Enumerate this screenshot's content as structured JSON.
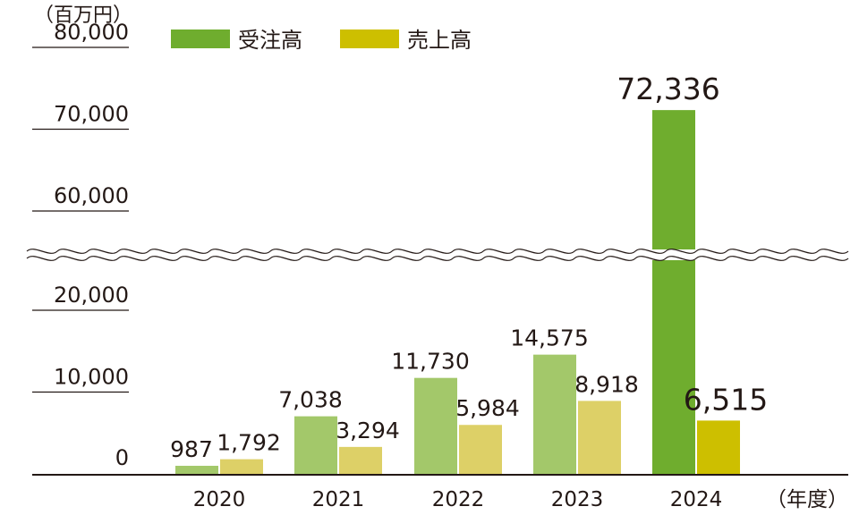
{
  "chart_data": {
    "type": "bar",
    "y_unit": "（百万円）",
    "x_unit": "（年度）",
    "categories": [
      "2020",
      "2021",
      "2022",
      "2023",
      "2024"
    ],
    "series": [
      {
        "name": "受注高",
        "values": [
          987,
          7038,
          11730,
          14575,
          72336
        ],
        "value_labels": [
          "987",
          "7,038",
          "11,730",
          "14,575",
          "72,336"
        ],
        "color": "#a3c86a",
        "highlight_color": "#6fad2e"
      },
      {
        "name": "売上高",
        "values": [
          1792,
          3294,
          5984,
          8918,
          6515
        ],
        "value_labels": [
          "1,792",
          "3,294",
          "5,984",
          "8,918",
          "6,515"
        ],
        "color": "#ddd067",
        "highlight_color": "#cdbf00"
      }
    ],
    "highlight_category": "2024",
    "y_ticks_lower": [
      0,
      10000,
      20000
    ],
    "y_ticks_upper": [
      60000,
      70000,
      80000
    ],
    "y_tick_labels_lower": [
      "0",
      "10,000",
      "20,000"
    ],
    "y_tick_labels_upper": [
      "60,000",
      "70,000",
      "80,000"
    ],
    "axis_break": {
      "lower_max": 25000,
      "upper_min": 55000
    },
    "ylim": [
      0,
      80000
    ],
    "grid": false,
    "legend_position": "top-left"
  }
}
